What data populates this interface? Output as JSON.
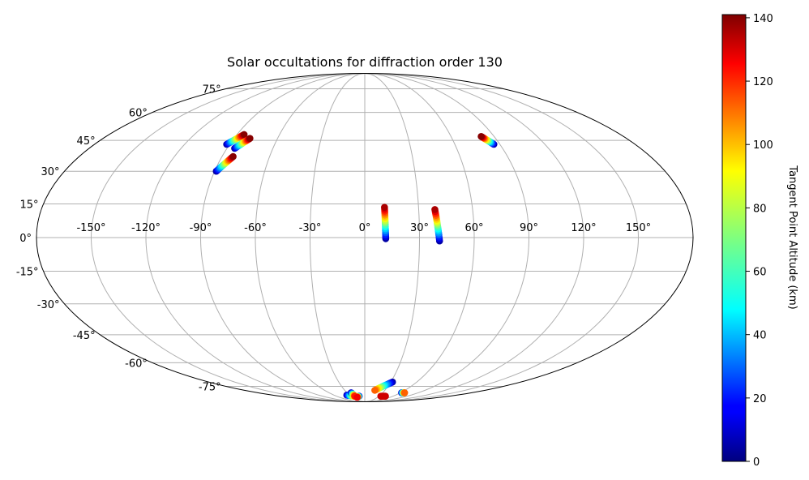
{
  "chart_data": {
    "type": "scatter",
    "projection": "mollweide",
    "title": "Solar occultations for diffraction order 130",
    "xlabel": "",
    "ylabel": "",
    "x_ticks": [
      "-150°",
      "-120°",
      "-90°",
      "-60°",
      "-30°",
      "0°",
      "30°",
      "60°",
      "90°",
      "120°",
      "150°"
    ],
    "y_ticks": [
      "75°",
      "60°",
      "45°",
      "30°",
      "15°",
      "0°",
      "-15°",
      "-30°",
      "-45°",
      "-60°",
      "-75°"
    ],
    "grid": true,
    "colorbar": {
      "label": "Tangent Point Altitude (km)",
      "colormap": "jet",
      "range": [
        0,
        141
      ],
      "ticks": [
        "0",
        "20",
        "40",
        "60",
        "80",
        "100",
        "120",
        "140"
      ]
    },
    "tracks": [
      {
        "lon_start": -92,
        "lat_start": 43,
        "lon_end": -85,
        "lat_end": 48,
        "alt_start": 5,
        "alt_end": 140
      },
      {
        "lon_start": -85,
        "lat_start": 41,
        "lon_end": -79,
        "lat_end": 46,
        "alt_start": 5,
        "alt_end": 140
      },
      {
        "lon_start": -89,
        "lat_start": 30,
        "lon_end": -83,
        "lat_end": 37,
        "alt_start": 5,
        "alt_end": 140
      },
      {
        "lon_start": 86,
        "lat_start": 43,
        "lon_end": 81,
        "lat_end": 47,
        "alt_start": 5,
        "alt_end": 140
      },
      {
        "lon_start": 11.5,
        "lat_start": -0.5,
        "lon_end": 11,
        "lat_end": 13.5,
        "alt_start": 5,
        "alt_end": 135
      },
      {
        "lon_start": 41,
        "lat_start": -1.5,
        "lon_end": 39,
        "lat_end": 12.5,
        "alt_start": 5,
        "alt_end": 135
      },
      {
        "lon_start": 32,
        "lat_start": -72,
        "lon_end": 15,
        "lat_end": -78,
        "alt_start": 5,
        "alt_end": 110
      },
      {
        "lon_start": -35,
        "lat_start": -82,
        "lon_end": -22,
        "lat_end": -83,
        "alt_start": 5,
        "alt_end": 100
      },
      {
        "lon_start": -23,
        "lat_start": -80,
        "lon_end": -21,
        "lat_end": -83,
        "alt_start": 5,
        "alt_end": 120
      },
      {
        "lon_start": -12,
        "lat_start": -83,
        "lon_end": -18,
        "lat_end": -84,
        "alt_start": 5,
        "alt_end": 125
      },
      {
        "lon_start": 62,
        "lat_start": -80,
        "lon_end": 67,
        "lat_end": -80,
        "alt_start": 5,
        "alt_end": 110
      },
      {
        "lon_start": 34,
        "lat_start": -83,
        "lon_end": 44,
        "lat_end": -83,
        "alt_start": 130,
        "alt_end": 130
      }
    ]
  }
}
